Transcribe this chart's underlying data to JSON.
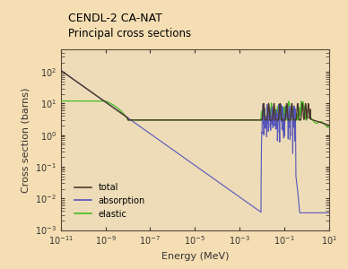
{
  "title_line1": "CENDL-2 CA-NAT",
  "title_line2": "Principal cross sections",
  "xlabel": "Energy (MeV)",
  "ylabel": "Cross section (barns)",
  "background_color": "#f5deb3",
  "plot_bg_color": "#eedcb8",
  "xlim": [
    1e-11,
    10
  ],
  "ylim": [
    0.001,
    500
  ],
  "legend_labels": [
    "total",
    "absorption",
    "elastic"
  ],
  "total_color": "#4a3a2a",
  "absorption_color": "#5555bb",
  "elastic_color": "#44bb22"
}
